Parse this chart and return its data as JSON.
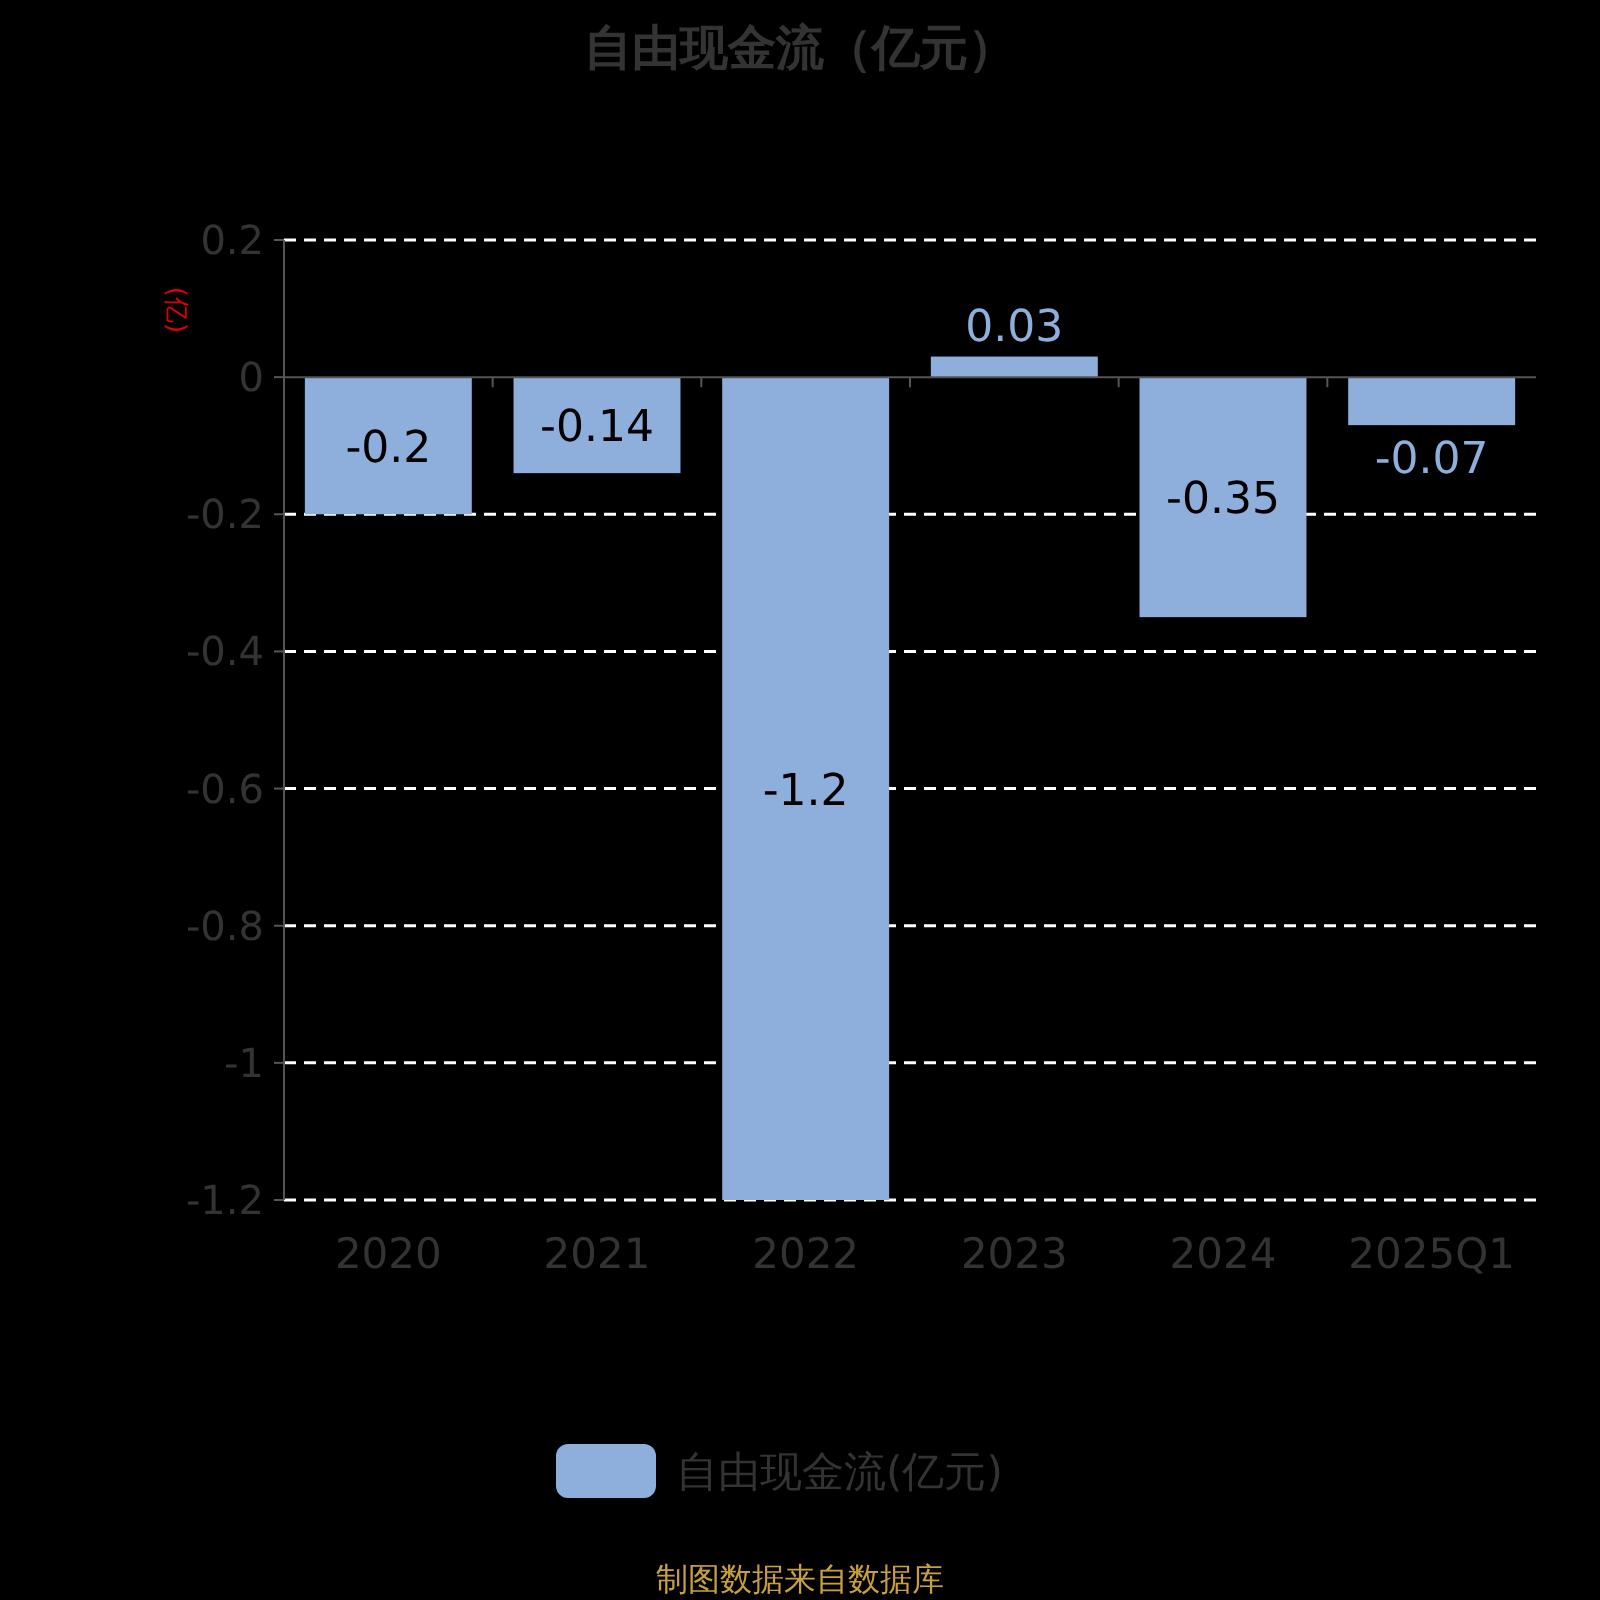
{
  "chart_data": {
    "type": "bar",
    "title": "自由现金流（亿元）",
    "ylabel": "(亿)",
    "categories": [
      "2020",
      "2021",
      "2022",
      "2023",
      "2024",
      "2025Q1"
    ],
    "series": [
      {
        "name": "自由现金流(亿元)",
        "color": "#8eaedc",
        "values": [
          -0.2,
          -0.14,
          -1.2,
          0.03,
          -0.35,
          -0.07
        ]
      }
    ],
    "ylim": [
      -1.2,
      0.2
    ],
    "yticks": [
      0.2,
      0,
      -0.2,
      -0.4,
      -0.6,
      -0.8,
      -1,
      -1.2
    ],
    "grid": "y",
    "legend": "bottom",
    "data_labels": true,
    "annotations": [
      "制图数据来自数据库"
    ]
  }
}
